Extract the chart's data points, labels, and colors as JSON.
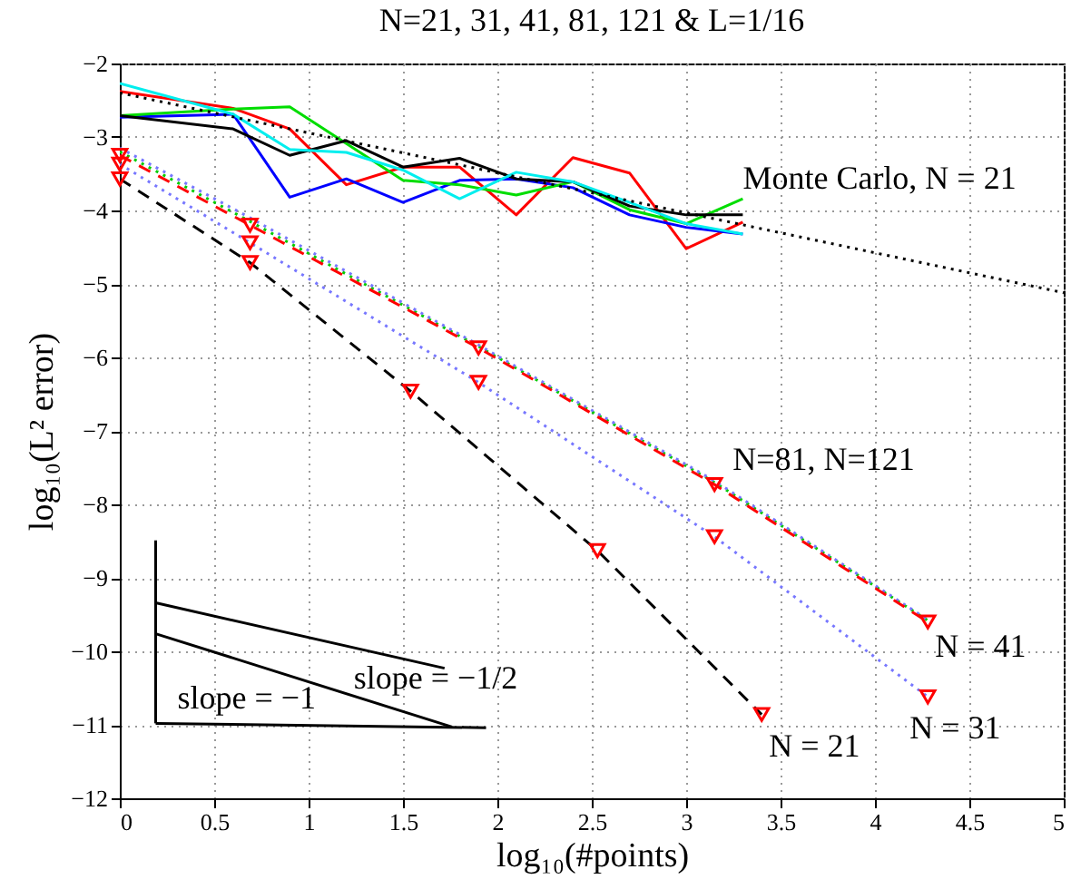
{
  "chart_data": {
    "type": "line",
    "title": "N=21, 31, 41, 81, 121 & L=1/16",
    "xlabel": "log₁₀(#points)",
    "ylabel": "log₁₀(L² error)",
    "xlim": [
      0,
      5
    ],
    "xticks": [
      0,
      0.5,
      1,
      1.5,
      2,
      2.5,
      3,
      3.5,
      4,
      4.5,
      5
    ],
    "ylim": [
      -12,
      -2
    ],
    "yticks": [
      -12,
      -11,
      -10,
      -9,
      -8,
      -7,
      -6,
      -5,
      -4,
      -3,
      -2
    ],
    "grid": true,
    "series": [
      {
        "color": "#ff0000",
        "line_style": "solid",
        "x": [
          0,
          0.6,
          0.9,
          1.2,
          1.5,
          1.8,
          2.1,
          2.4,
          2.7,
          3.0,
          3.3
        ],
        "values": [
          -2.38,
          -2.61,
          -2.89,
          -3.65,
          -3.41,
          -3.41,
          -4.06,
          -3.28,
          -3.49,
          -4.52,
          -4.16
        ]
      },
      {
        "color": "#0000ff",
        "line_style": "solid",
        "x": [
          0,
          0.6,
          0.9,
          1.2,
          1.5,
          1.8,
          2.1,
          2.4,
          2.7,
          3.0,
          3.3
        ],
        "values": [
          -2.73,
          -2.69,
          -3.82,
          -3.57,
          -3.89,
          -3.59,
          -3.57,
          -3.69,
          -4.06,
          -4.23,
          -4.32
        ]
      },
      {
        "color": "#00dd00",
        "line_style": "solid",
        "x": [
          0,
          0.6,
          0.9,
          1.2,
          1.5,
          1.8,
          2.1,
          2.4,
          2.7,
          3.0,
          3.3
        ],
        "values": [
          -2.71,
          -2.62,
          -2.59,
          -3.09,
          -3.59,
          -3.65,
          -3.79,
          -3.61,
          -3.99,
          -4.18,
          -3.84
        ]
      },
      {
        "color": "#000000",
        "line_style": "solid",
        "x": [
          0,
          0.6,
          0.9,
          1.2,
          1.5,
          1.8,
          2.1,
          2.4,
          2.7,
          3.0,
          3.3
        ],
        "values": [
          -2.71,
          -2.89,
          -3.25,
          -3.05,
          -3.41,
          -3.29,
          -3.57,
          -3.61,
          -3.94,
          -4.06,
          -4.06
        ]
      },
      {
        "name": "Monte Carlo, N = 21",
        "color": "#00eeee",
        "line_style": "solid",
        "x": [
          0,
          0.6,
          0.9,
          1.2,
          1.5,
          1.8,
          2.1,
          2.4,
          2.7,
          3.0,
          3.3
        ],
        "values": [
          -2.27,
          -2.69,
          -3.17,
          -3.21,
          -3.45,
          -3.84,
          -3.48,
          -3.61,
          -3.89,
          -4.18,
          -4.32
        ]
      },
      {
        "color": "#000000",
        "line_style": "dotted",
        "x": [
          0,
          5
        ],
        "values": [
          -2.4,
          -5.12
        ]
      },
      {
        "name": "N = 21",
        "color": "#000000",
        "line_style": "dashed",
        "x": [
          0,
          0.69,
          1.54,
          2.53,
          3.4
        ],
        "values": [
          -3.57,
          -4.71,
          -6.46,
          -8.63,
          -10.86
        ]
      },
      {
        "name": "N = 31",
        "color": "#7777ff",
        "line_style": "dotted",
        "x": [
          0,
          0.69,
          1.9,
          3.15,
          4.28
        ],
        "values": [
          -3.37,
          -4.44,
          -6.34,
          -8.44,
          -10.62
        ]
      },
      {
        "name": "N=81, N=121",
        "color": "#00cc00",
        "line_style": "dotted",
        "x": [
          0,
          0.69,
          1.9,
          3.15,
          4.28
        ],
        "values": [
          -3.2,
          -4.15,
          -5.85,
          -7.7,
          -9.58
        ]
      },
      {
        "color": "#7777ff",
        "line_style": "dotted",
        "x": [
          0,
          0.69,
          1.9,
          3.15,
          4.28
        ],
        "values": [
          -3.15,
          -4.1,
          -5.83,
          -7.68,
          -9.57
        ]
      },
      {
        "name": "N = 41",
        "color": "#ff0000",
        "line_style": "dashed",
        "x": [
          0,
          0.69,
          1.9,
          3.15,
          4.28
        ],
        "values": [
          -3.25,
          -4.2,
          -5.87,
          -7.73,
          -9.6
        ]
      },
      {
        "type": "scatter",
        "color": "#ff0000",
        "marker": "triangle",
        "x": [
          0,
          0.69,
          1.54,
          2.53,
          3.4,
          0,
          0.69,
          1.9,
          3.15,
          4.28,
          0,
          0.69,
          1.9,
          3.15,
          4.28
        ],
        "values": [
          -3.57,
          -4.71,
          -6.46,
          -8.63,
          -10.86,
          -3.37,
          -4.44,
          -6.34,
          -8.44,
          -10.62,
          -3.25,
          -4.2,
          -5.87,
          -7.73,
          -9.6
        ]
      },
      {
        "color": "#000000",
        "line_style": "solid",
        "x": [
          0.19,
          0.19
        ],
        "values": [
          -8.49,
          -10.98
        ]
      },
      {
        "color": "#000000",
        "line_style": "solid",
        "x": [
          0.19,
          1.94
        ],
        "values": [
          -10.98,
          -11.04
        ]
      },
      {
        "name": "slope = −1/2",
        "color": "#000000",
        "line_style": "solid",
        "x": [
          0.19,
          1.72
        ],
        "values": [
          -9.34,
          -10.23
        ]
      },
      {
        "name": "slope = −1",
        "color": "#000000",
        "line_style": "solid",
        "x": [
          0.19,
          1.76
        ],
        "values": [
          -9.76,
          -11.03
        ]
      }
    ]
  }
}
